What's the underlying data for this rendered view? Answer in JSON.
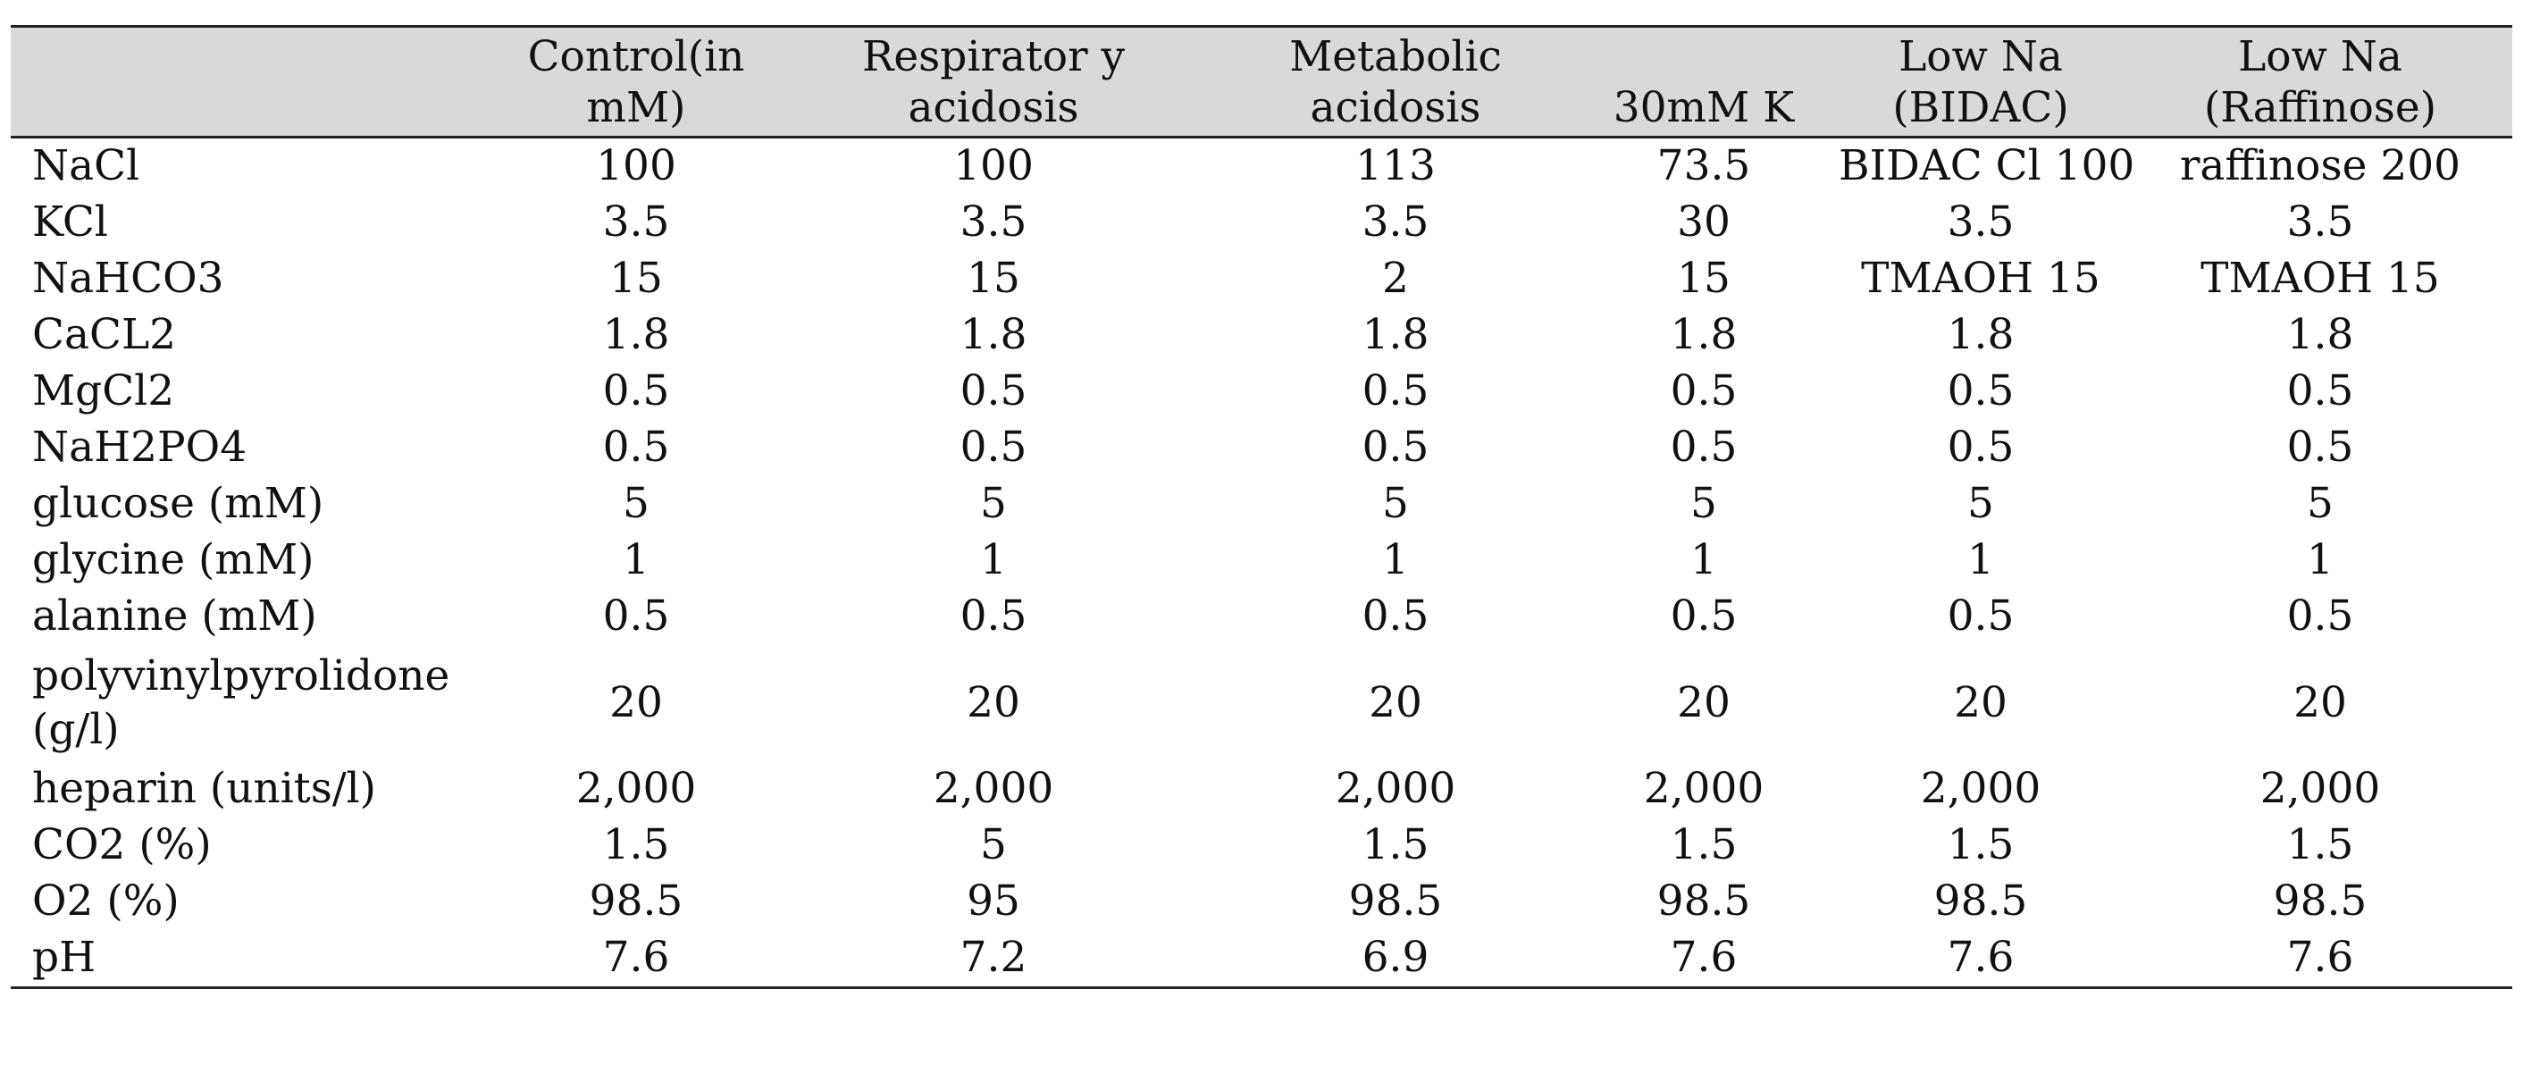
{
  "table": {
    "headers": [
      "",
      "Control(in mM)",
      "Respirator y acidosis",
      "Metabolic acidosis",
      "30mM K",
      "Low Na (BIDAC)",
      "Low Na (Raffinose)"
    ],
    "rows": [
      [
        "NaCl",
        "100",
        "100",
        "113",
        "73.5",
        "BIDAC Cl 100",
        "raffinose 200"
      ],
      [
        "KCl",
        "3.5",
        "3.5",
        "3.5",
        "30",
        "3.5",
        "3.5"
      ],
      [
        "NaHCO3",
        "15",
        "15",
        "2",
        "15",
        "TMAOH 15",
        "TMAOH 15"
      ],
      [
        "CaCL2",
        "1.8",
        "1.8",
        "1.8",
        "1.8",
        "1.8",
        "1.8"
      ],
      [
        "MgCl2",
        "0.5",
        "0.5",
        "0.5",
        "0.5",
        "0.5",
        "0.5"
      ],
      [
        "NaH2PO4",
        "0.5",
        "0.5",
        "0.5",
        "0.5",
        "0.5",
        "0.5"
      ],
      [
        "glucose (mM)",
        "5",
        "5",
        "5",
        "5",
        "5",
        "5"
      ],
      [
        "glycine (mM)",
        "1",
        "1",
        "1",
        "1",
        "1",
        "1"
      ],
      [
        "alanine (mM)",
        "0.5",
        "0.5",
        "0.5",
        "0.5",
        "0.5",
        "0.5"
      ],
      [
        "polyvinylpyrolidone (g/l)",
        "20",
        "20",
        "20",
        "20",
        "20",
        "20"
      ],
      [
        "heparin (units/l)",
        "2,000",
        "2,000",
        "2,000",
        "2,000",
        "2,000",
        "2,000"
      ],
      [
        "CO2 (%)",
        "1.5",
        "5",
        "1.5",
        "1.5",
        "1.5",
        "1.5"
      ],
      [
        "O2 (%)",
        "98.5",
        "95",
        "98.5",
        "98.5",
        "98.5",
        "98.5"
      ],
      [
        "pH",
        "7.6",
        "7.2",
        "6.9",
        "7.6",
        "7.6",
        "7.6"
      ]
    ]
  },
  "colors": {
    "header_background": "#d9d9d9",
    "rule": "#222222",
    "text": "#111111"
  }
}
